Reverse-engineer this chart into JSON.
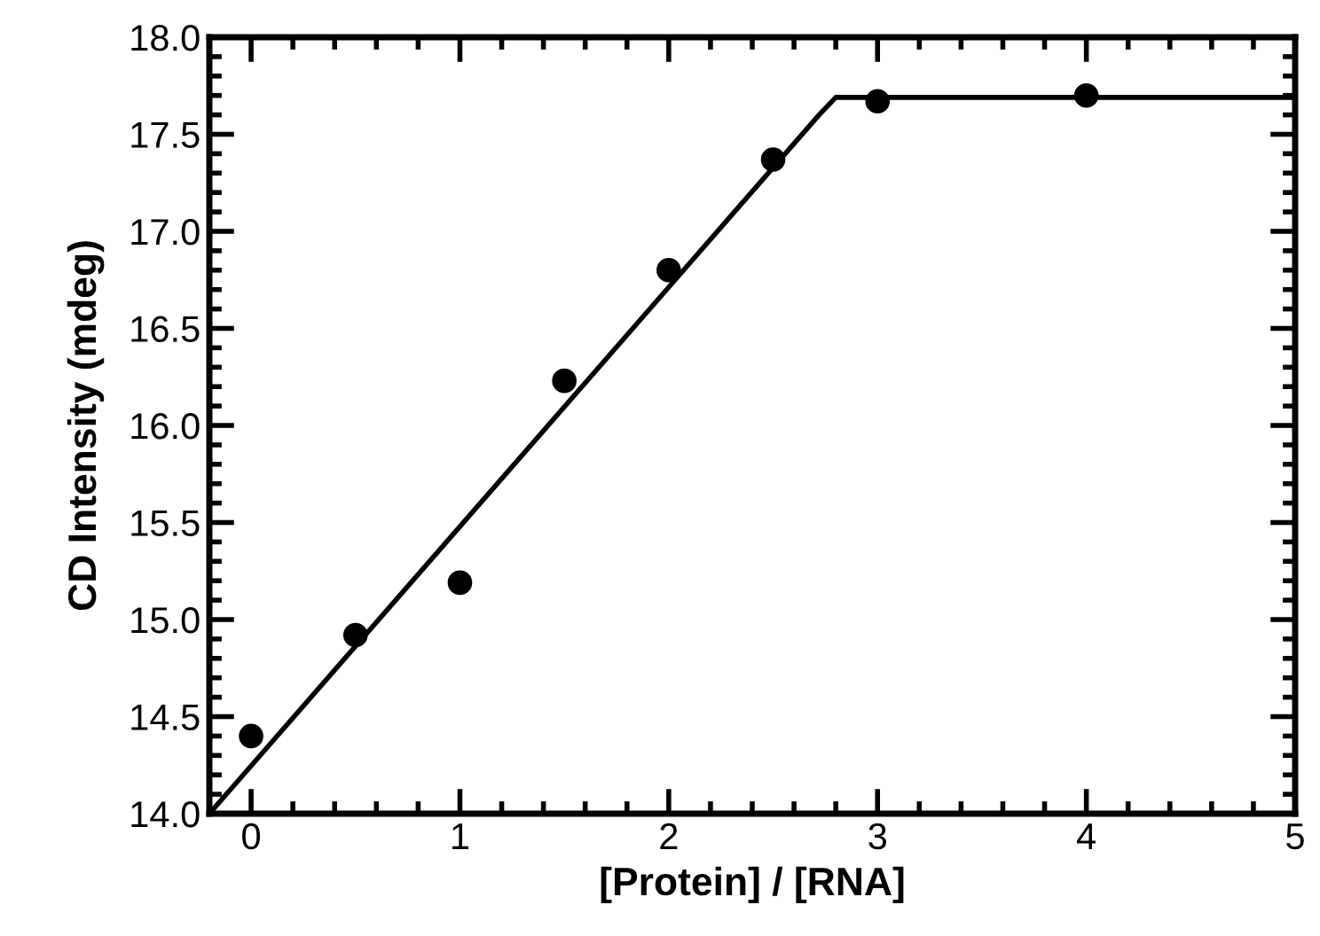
{
  "chart_data": {
    "type": "scatter",
    "xlabel": "[Protein] / [RNA]",
    "ylabel": "CD Intensity (mdeg)",
    "series": [
      {
        "color": "#000000",
        "marker": "circle",
        "x": [
          0,
          0.5,
          1,
          1.5,
          2,
          2.5,
          3,
          4
        ],
        "values": [
          14.4,
          14.92,
          15.19,
          16.23,
          16.8,
          17.37,
          17.67,
          17.7
        ]
      },
      {
        "type": "line",
        "color": "#000000",
        "marker": "none",
        "line_style": "solid",
        "x": [
          -0.2,
          2.72,
          2.8,
          5
        ],
        "values": [
          14.0,
          17.6,
          17.69,
          17.69
        ]
      }
    ],
    "xlim": [
      -0.2,
      5
    ],
    "xticks": [
      0,
      1,
      2,
      3,
      4,
      5
    ],
    "ylim": [
      14.0,
      18.0
    ],
    "yticks": [
      {
        "value": 14.0,
        "label": "14.0"
      },
      {
        "value": 14.5,
        "label": "14.5"
      },
      {
        "value": 15.0,
        "label": "15.0"
      },
      {
        "value": 15.5,
        "label": "15.5"
      },
      {
        "value": 16.0,
        "label": "16.0"
      },
      {
        "value": 16.5,
        "label": "16.5"
      },
      {
        "value": 17.0,
        "label": "17.0"
      },
      {
        "value": 17.5,
        "label": "17.5"
      },
      {
        "value": 18.0,
        "label": "18.0"
      }
    ],
    "grid": false,
    "legend": false
  }
}
